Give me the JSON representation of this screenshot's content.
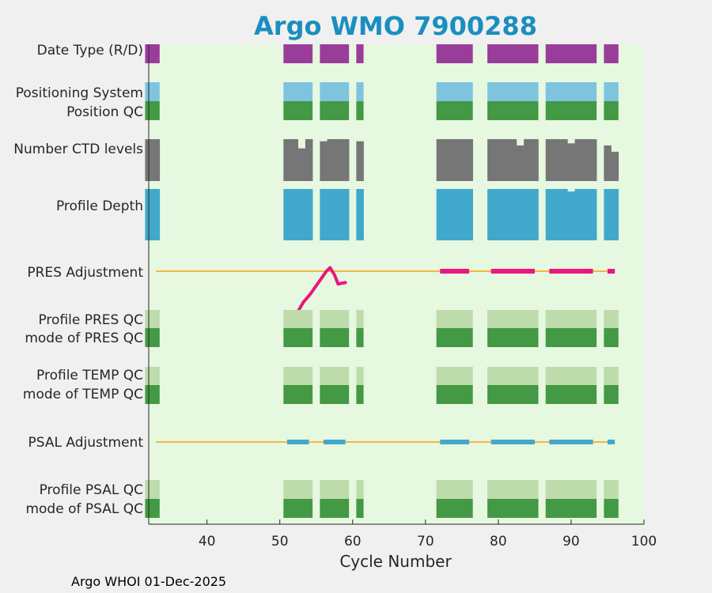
{
  "chart_data": {
    "type": "bar",
    "title": "Argo WMO 7900288",
    "xlabel": "Cycle Number",
    "xlim": [
      32,
      100
    ],
    "xticks": [
      40,
      50,
      60,
      70,
      80,
      90,
      100
    ],
    "footer": "Argo WHOI 01-Dec-2025",
    "cycles": [
      32,
      33,
      51,
      52,
      53,
      54,
      56,
      57,
      58,
      59,
      61,
      72,
      73,
      74,
      75,
      76,
      79,
      80,
      81,
      82,
      83,
      84,
      85,
      87,
      88,
      89,
      90,
      91,
      92,
      93,
      95,
      96
    ],
    "rows": [
      {
        "label": "Date Type (R/D)",
        "kind": "state",
        "color": "#9a3d9a"
      },
      {
        "label": "Positioning System",
        "kind": "state",
        "color": "#7ec4df"
      },
      {
        "label": "Position QC",
        "kind": "state",
        "color": "#449944"
      },
      {
        "label": "Number CTD levels",
        "kind": "series",
        "color": "#767676",
        "values": [
          1,
          1,
          1,
          1,
          0.78,
          1,
          0.95,
          1,
          1,
          1,
          0.95,
          1,
          1,
          1,
          1,
          1,
          1,
          1,
          1,
          1,
          0.85,
          1,
          1,
          1,
          1,
          1,
          0.9,
          1,
          1,
          1,
          0.85,
          0.7
        ]
      },
      {
        "label": "Profile Depth",
        "kind": "series",
        "color": "#41a8cc",
        "values": [
          1,
          1,
          1,
          1,
          1,
          1,
          1,
          1,
          1,
          1,
          1,
          1,
          1,
          1,
          1,
          1,
          1,
          1,
          1,
          1,
          1,
          1,
          1,
          1,
          1,
          1,
          0.95,
          1,
          1,
          1,
          1,
          1
        ]
      },
      {
        "label": "PRES Adjustment",
        "kind": "adjustment",
        "line_color": "#f5b642",
        "color": "#e8177f",
        "segments": [
          [
            72,
            76
          ],
          [
            79,
            85
          ],
          [
            87,
            93
          ],
          [
            95,
            96
          ]
        ],
        "curve": [
          [
            51.5,
            -0.62
          ],
          [
            52.3,
            -0.6
          ],
          [
            53.2,
            -0.44
          ],
          [
            54.2,
            -0.32
          ],
          [
            56.4,
            0.0
          ],
          [
            56.9,
            0.05
          ],
          [
            57.5,
            -0.05
          ],
          [
            58.0,
            -0.18
          ],
          [
            59.0,
            -0.16
          ]
        ]
      },
      {
        "label": "Profile PRES QC",
        "kind": "state",
        "color": "#bddbab"
      },
      {
        "label": "mode of PRES QC",
        "kind": "state",
        "color": "#449944"
      },
      {
        "label": "Profile TEMP QC",
        "kind": "state",
        "color": "#bddbab"
      },
      {
        "label": "mode of TEMP QC",
        "kind": "state",
        "color": "#449944"
      },
      {
        "label": "PSAL Adjustment",
        "kind": "adjustment",
        "line_color": "#f5b642",
        "color": "#41a8cc",
        "segments": [
          [
            51,
            54
          ],
          [
            56,
            59
          ],
          [
            72,
            76
          ],
          [
            79,
            85
          ],
          [
            87,
            93
          ],
          [
            95,
            96
          ]
        ]
      },
      {
        "label": "Profile PSAL QC",
        "kind": "state",
        "color": "#bddbab"
      },
      {
        "label": "mode of PSAL QC",
        "kind": "state",
        "color": "#449944"
      }
    ]
  },
  "colors": {
    "background": "#f0f0f0",
    "plot_bg": "#e6f8e0",
    "title": "#1a8fbf",
    "axis": "#262626"
  }
}
